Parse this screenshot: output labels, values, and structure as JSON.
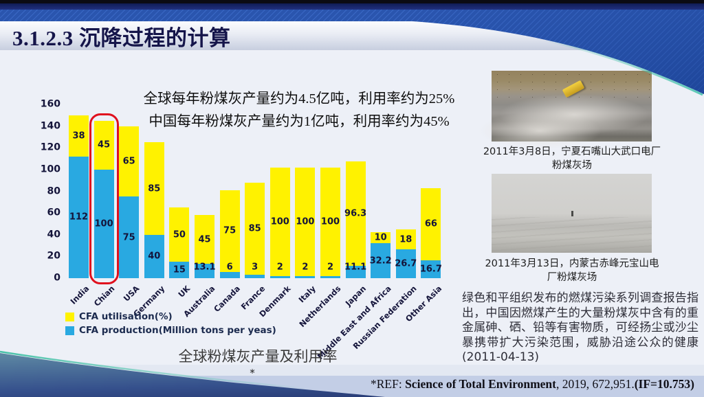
{
  "slide": {
    "title": "3.1.2.3  沉降过程的计算",
    "annotation_line1": "全球每年粉煤灰产量约为4.5亿吨，利用率约为25%",
    "annotation_line2": "中国每年粉煤灰产量约为1亿吨，利用率约为45%",
    "footnote_star": "*"
  },
  "chart_data": {
    "type": "bar",
    "stacked": true,
    "title": "全球粉煤灰产量及利用率",
    "categories": [
      "India",
      "Chian",
      "USA",
      "Germany",
      "UK",
      "Australia",
      "Canada",
      "France",
      "Denmark",
      "Italy",
      "Netherlands",
      "Japan",
      "Middle East and Africa",
      "Russian Federation",
      "Other Asia"
    ],
    "series": [
      {
        "name": "CFA production(Million tons per yeas)",
        "color": "#29a9e1",
        "values": [
          112,
          100,
          75,
          40,
          15,
          13.1,
          6,
          3,
          2,
          2,
          2,
          11.1,
          32.2,
          26.7,
          16.7
        ]
      },
      {
        "name": "CFA utilisation(%)",
        "color": "#fff200",
        "values": [
          38,
          45,
          65,
          85,
          50,
          45,
          75,
          85,
          100,
          100,
          100,
          96.3,
          10,
          18,
          66
        ]
      }
    ],
    "ylim": [
      0,
      160
    ],
    "ytick_step": 20,
    "grid": false,
    "legend_position": "bottom-left",
    "highlight_category": "Chian",
    "highlight_color": "#e0101e"
  },
  "photos": {
    "caption1": "2011年3月8日，宁夏石嘴山大武口电厂粉煤灰场",
    "caption2": "2011年3月13日，内蒙古赤峰元宝山电厂粉煤灰场"
  },
  "paragraph": "绿色和平组织发布的燃煤污染系列调查报告指出，中国因燃煤产生的大量粉煤灰中含有的重金属砷、硒、铅等有害物质，可经扬尘或沙尘暴携带扩大污染范围，威胁沿途公众的健康 (2011-04-13)",
  "reference": {
    "prefix": "*REF: ",
    "journal": "Science of Total Environment",
    "middle": ", 2019, 672,951.",
    "impact": "(IF=10.753)"
  }
}
